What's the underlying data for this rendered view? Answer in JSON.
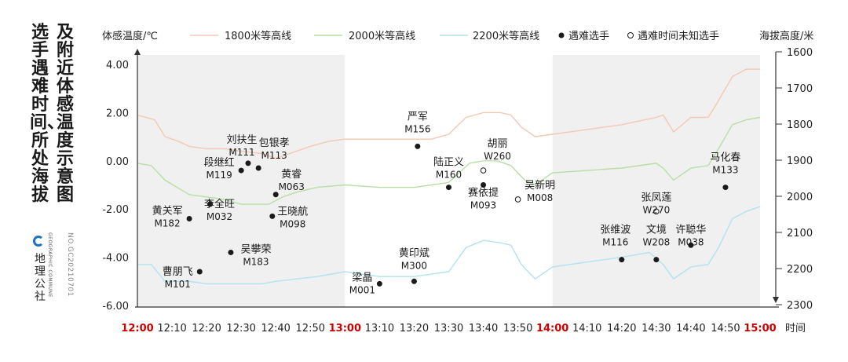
{
  "title": {
    "line1": "及附近体感温度示意图",
    "line2": "选手遇难时间、所处海拔"
  },
  "logo": {
    "name": "地理公社",
    "english": "GEOGRAPHIC COMMUNE",
    "serial": "NO.GC20210701"
  },
  "colors": {
    "line_1800": "#f4c8b3",
    "line_2000": "#b7dfa5",
    "line_2200": "#b0e2f0",
    "shade": "#f0f0f0",
    "axis": "#333333",
    "highlight_tick": "#cc0000",
    "marker": "#1a1a1a"
  },
  "chart_data": {
    "type": "line",
    "left_axis_title": "体感温度/℃",
    "right_axis_title": "海拔高度/米",
    "x_axis_title": "时间",
    "left_ylim": [
      -6,
      4
    ],
    "left_ticks": [
      "4.00",
      "2.00",
      "0.00",
      "-2.00",
      "-4.00",
      "-6.00"
    ],
    "right_ylim": [
      1600,
      2300
    ],
    "right_ticks": [
      "1600",
      "1700",
      "1800",
      "1900",
      "2000",
      "2100",
      "2200",
      "2300"
    ],
    "right_axis_inverted": true,
    "x_range_minutes": [
      0,
      180
    ],
    "x_ticks": [
      {
        "label": "12:00",
        "minute": 0,
        "highlight": true
      },
      {
        "label": "12:10",
        "minute": 10
      },
      {
        "label": "12:20",
        "minute": 20
      },
      {
        "label": "12:30",
        "minute": 30
      },
      {
        "label": "12:40",
        "minute": 40
      },
      {
        "label": "12:50",
        "minute": 50
      },
      {
        "label": "13:00",
        "minute": 60,
        "highlight": true
      },
      {
        "label": "13:10",
        "minute": 70
      },
      {
        "label": "13:20",
        "minute": 80
      },
      {
        "label": "13:30",
        "minute": 90
      },
      {
        "label": "13:40",
        "minute": 100
      },
      {
        "label": "13:50",
        "minute": 110
      },
      {
        "label": "14:00",
        "minute": 120,
        "highlight": true
      },
      {
        "label": "14:10",
        "minute": 130
      },
      {
        "label": "14:20",
        "minute": 140
      },
      {
        "label": "14:30",
        "minute": 150
      },
      {
        "label": "14:40",
        "minute": 160
      },
      {
        "label": "14:50",
        "minute": 170
      },
      {
        "label": "15:00",
        "minute": 180,
        "highlight": true
      }
    ],
    "shaded_minute_ranges": [
      [
        0,
        60
      ],
      [
        120,
        180
      ]
    ],
    "legend": {
      "s1800": "1800米等高线",
      "s2000": "2000米等高线",
      "s2200": "2200米等高线",
      "dead": "遇难选手",
      "unknown": "遇难时间未知选手"
    },
    "series": [
      {
        "name": "1800米等高线",
        "color_key": "line_1800",
        "points": [
          [
            0,
            1.9
          ],
          [
            5,
            1.7
          ],
          [
            8,
            1.0
          ],
          [
            12,
            0.8
          ],
          [
            15,
            0.6
          ],
          [
            20,
            0.5
          ],
          [
            25,
            0.5
          ],
          [
            30,
            0.4
          ],
          [
            36,
            0.3
          ],
          [
            40,
            0.1
          ],
          [
            44,
            0.3
          ],
          [
            50,
            0.6
          ],
          [
            55,
            0.8
          ],
          [
            60,
            0.9
          ],
          [
            70,
            0.9
          ],
          [
            80,
            0.9
          ],
          [
            85,
            0.9
          ],
          [
            90,
            1.1
          ],
          [
            95,
            1.8
          ],
          [
            100,
            2.0
          ],
          [
            105,
            2.0
          ],
          [
            108,
            1.9
          ],
          [
            111,
            1.4
          ],
          [
            115,
            1.0
          ],
          [
            120,
            1.1
          ],
          [
            130,
            1.3
          ],
          [
            140,
            1.5
          ],
          [
            150,
            1.8
          ],
          [
            152,
            1.9
          ],
          [
            155,
            1.2
          ],
          [
            160,
            1.8
          ],
          [
            165,
            1.8
          ],
          [
            168,
            2.5
          ],
          [
            172,
            3.5
          ],
          [
            176,
            3.8
          ],
          [
            180,
            3.8
          ]
        ]
      },
      {
        "name": "2000米等高线",
        "color_key": "line_2000",
        "points": [
          [
            0,
            -0.1
          ],
          [
            4,
            -0.2
          ],
          [
            8,
            -0.8
          ],
          [
            15,
            -1.4
          ],
          [
            20,
            -1.5
          ],
          [
            25,
            -1.6
          ],
          [
            30,
            -1.8
          ],
          [
            38,
            -1.8
          ],
          [
            42,
            -1.5
          ],
          [
            46,
            -1.3
          ],
          [
            52,
            -1.1
          ],
          [
            60,
            -1.0
          ],
          [
            70,
            -1.1
          ],
          [
            80,
            -1.1
          ],
          [
            85,
            -1.0
          ],
          [
            90,
            -0.9
          ],
          [
            93,
            -0.5
          ],
          [
            96,
            -0.1
          ],
          [
            100,
            0.0
          ],
          [
            104,
            0.0
          ],
          [
            108,
            -0.2
          ],
          [
            112,
            -0.8
          ],
          [
            115,
            -1.0
          ],
          [
            120,
            -0.5
          ],
          [
            130,
            -0.4
          ],
          [
            140,
            -0.3
          ],
          [
            150,
            -0.1
          ],
          [
            152,
            -0.3
          ],
          [
            155,
            -0.8
          ],
          [
            160,
            -0.3
          ],
          [
            165,
            -0.2
          ],
          [
            168,
            0.5
          ],
          [
            172,
            1.5
          ],
          [
            176,
            1.7
          ],
          [
            180,
            1.8
          ]
        ]
      },
      {
        "name": "2200米等高线",
        "color_key": "line_2200",
        "points": [
          [
            0,
            -4.3
          ],
          [
            4,
            -4.3
          ],
          [
            8,
            -5.0
          ],
          [
            15,
            -5.0
          ],
          [
            20,
            -5.1
          ],
          [
            25,
            -5.1
          ],
          [
            30,
            -5.1
          ],
          [
            36,
            -5.1
          ],
          [
            40,
            -5.0
          ],
          [
            46,
            -4.9
          ],
          [
            52,
            -4.8
          ],
          [
            60,
            -4.6
          ],
          [
            70,
            -4.8
          ],
          [
            80,
            -4.8
          ],
          [
            85,
            -4.7
          ],
          [
            90,
            -4.6
          ],
          [
            95,
            -3.6
          ],
          [
            100,
            -3.3
          ],
          [
            105,
            -3.4
          ],
          [
            108,
            -3.5
          ],
          [
            111,
            -4.3
          ],
          [
            115,
            -4.9
          ],
          [
            120,
            -4.4
          ],
          [
            130,
            -4.2
          ],
          [
            140,
            -4.0
          ],
          [
            148,
            -3.8
          ],
          [
            152,
            -4.3
          ],
          [
            155,
            -4.9
          ],
          [
            160,
            -4.4
          ],
          [
            165,
            -4.3
          ],
          [
            168,
            -3.6
          ],
          [
            172,
            -2.4
          ],
          [
            176,
            -2.1
          ],
          [
            180,
            -1.9
          ]
        ]
      }
    ],
    "athletes": [
      {
        "name": "黄关军",
        "id": "M182",
        "minute": 15,
        "value": -2.4,
        "status": "dead"
      },
      {
        "name": "曹朋飞",
        "id": "M101",
        "minute": 18,
        "value": -4.6,
        "status": "dead"
      },
      {
        "name": "李全旺",
        "id": "M032",
        "minute": 21,
        "value": -1.8,
        "status": "dead"
      },
      {
        "name": "吴攀荣",
        "id": "M183",
        "minute": 27,
        "value": -3.8,
        "status": "dead"
      },
      {
        "name": "段继红",
        "id": "M119",
        "minute": 30,
        "value": -0.4,
        "status": "dead"
      },
      {
        "name": "刘扶生",
        "id": "M111",
        "minute": 32,
        "value": -0.1,
        "status": "dead"
      },
      {
        "name": "包银孝",
        "id": "M113",
        "minute": 35,
        "value": -0.3,
        "status": "dead"
      },
      {
        "name": "王晓航",
        "id": "M098",
        "minute": 39,
        "value": -2.3,
        "status": "dead"
      },
      {
        "name": "黄睿",
        "id": "M063",
        "minute": 40,
        "value": -1.4,
        "status": "dead"
      },
      {
        "name": "梁晶",
        "id": "M001",
        "minute": 70,
        "value": -5.1,
        "status": "dead"
      },
      {
        "name": "黄印斌",
        "id": "M300",
        "minute": 80,
        "value": -5.0,
        "status": "dead"
      },
      {
        "name": "严军",
        "id": "M156",
        "minute": 81,
        "value": 0.6,
        "status": "dead"
      },
      {
        "name": "陆正义",
        "id": "M160",
        "minute": 90,
        "value": -1.1,
        "status": "dead"
      },
      {
        "name": "胡丽",
        "id": "W260",
        "minute": 100,
        "value": -0.4,
        "status": "unknown"
      },
      {
        "name": "赛依提",
        "id": "M093",
        "minute": 100,
        "value": -1.0,
        "status": "dead"
      },
      {
        "name": "吴新明",
        "id": "M008",
        "minute": 110,
        "value": -1.6,
        "status": "unknown"
      },
      {
        "name": "张维波",
        "id": "M116",
        "minute": 140,
        "value": -4.1,
        "status": "dead"
      },
      {
        "name": "张凤莲",
        "id": "W270",
        "minute": 150,
        "value": -2.1,
        "status": "unknown"
      },
      {
        "name": "文境",
        "id": "W208",
        "minute": 150,
        "value": -4.1,
        "status": "dead"
      },
      {
        "name": "许聪华",
        "id": "M038",
        "minute": 160,
        "value": -3.5,
        "status": "dead"
      },
      {
        "name": "马化春",
        "id": "M133",
        "minute": 170,
        "value": -1.1,
        "status": "dead"
      }
    ]
  }
}
